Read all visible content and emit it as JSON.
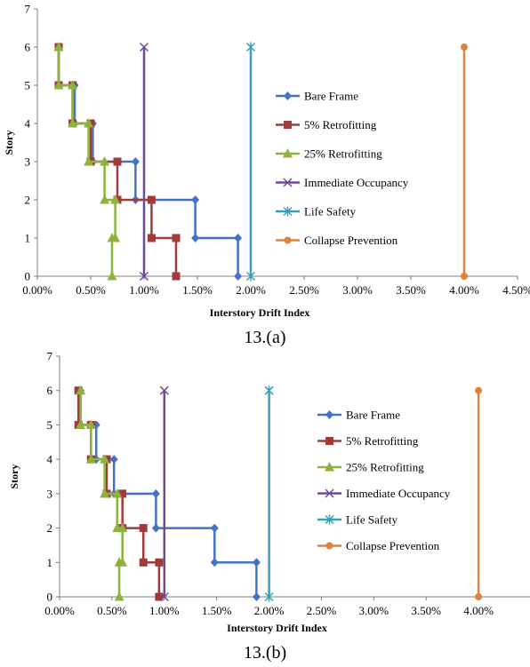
{
  "colors": {
    "Bare Frame": "#4472C4",
    "5% Retrofitting": "#A33A3A",
    "25% Retrofitting": "#8DB33E",
    "Immediate Occupancy": "#6F4A96",
    "Life Safety": "#3A9FB5",
    "Collapse Prevention": "#E0823A"
  },
  "markers": {
    "Bare Frame": "diamond",
    "5% Retrofitting": "square",
    "25% Retrofitting": "triangle",
    "Immediate Occupancy": "x",
    "Life Safety": "star",
    "Collapse Prevention": "circle"
  },
  "chart_data": [
    {
      "caption": "13.(a)",
      "type": "line",
      "xlabel": "Interstory Drift Index",
      "ylabel": "Story",
      "xlim": [
        0,
        4.5
      ],
      "ylim": [
        0,
        7
      ],
      "xticks": [
        "0.00%",
        "0.50%",
        "1.00%",
        "1.50%",
        "2.00%",
        "2.50%",
        "3.00%",
        "3.50%",
        "4.00%",
        "4.50%"
      ],
      "yticks": [
        "0",
        "1",
        "2",
        "3",
        "4",
        "5",
        "6",
        "7"
      ],
      "grid": false,
      "legend_position": "right",
      "series": [
        {
          "name": "Bare Frame",
          "points": [
            [
              1.88,
              0
            ],
            [
              1.88,
              1
            ],
            [
              1.48,
              1
            ],
            [
              1.48,
              2
            ],
            [
              0.92,
              2
            ],
            [
              0.92,
              3
            ],
            [
              0.52,
              3
            ],
            [
              0.52,
              4
            ],
            [
              0.35,
              4
            ],
            [
              0.35,
              5
            ],
            [
              0.2,
              5
            ],
            [
              0.2,
              6
            ]
          ]
        },
        {
          "name": "5% Retrofitting",
          "points": [
            [
              1.3,
              0
            ],
            [
              1.3,
              1
            ],
            [
              1.07,
              1
            ],
            [
              1.07,
              2
            ],
            [
              0.75,
              2
            ],
            [
              0.75,
              3
            ],
            [
              0.5,
              3
            ],
            [
              0.5,
              4
            ],
            [
              0.33,
              4
            ],
            [
              0.33,
              5
            ],
            [
              0.2,
              5
            ],
            [
              0.2,
              6
            ]
          ]
        },
        {
          "name": "25% Retrofitting",
          "points": [
            [
              0.7,
              0
            ],
            [
              0.7,
              1
            ],
            [
              0.73,
              1
            ],
            [
              0.73,
              2
            ],
            [
              0.63,
              2
            ],
            [
              0.63,
              3
            ],
            [
              0.48,
              3
            ],
            [
              0.48,
              4
            ],
            [
              0.33,
              4
            ],
            [
              0.33,
              5
            ],
            [
              0.2,
              5
            ],
            [
              0.2,
              6
            ]
          ]
        },
        {
          "name": "Immediate Occupancy",
          "points": [
            [
              1.0,
              0
            ],
            [
              1.0,
              6
            ]
          ]
        },
        {
          "name": "Life Safety",
          "points": [
            [
              2.0,
              0
            ],
            [
              2.0,
              6
            ]
          ]
        },
        {
          "name": "Collapse Prevention",
          "points": [
            [
              4.0,
              0
            ],
            [
              4.0,
              6
            ]
          ]
        }
      ]
    },
    {
      "caption": "13.(b)",
      "type": "line",
      "xlabel": "Interstory Drift Index",
      "ylabel": "Story",
      "xlim": [
        0,
        4.5
      ],
      "ylim": [
        0,
        7
      ],
      "xticks": [
        "0.00%",
        "0.50%",
        "1.00%",
        "1.50%",
        "2.00%",
        "2.50%",
        "3.00%",
        "3.50%",
        "4.00%"
      ],
      "yticks": [
        "0",
        "1",
        "2",
        "3",
        "4",
        "5",
        "6",
        "7"
      ],
      "grid": false,
      "legend_position": "right",
      "series": [
        {
          "name": "Bare Frame",
          "points": [
            [
              1.88,
              0
            ],
            [
              1.88,
              1
            ],
            [
              1.48,
              1
            ],
            [
              1.48,
              2
            ],
            [
              0.92,
              2
            ],
            [
              0.92,
              3
            ],
            [
              0.52,
              3
            ],
            [
              0.52,
              4
            ],
            [
              0.35,
              4
            ],
            [
              0.35,
              5
            ],
            [
              0.2,
              5
            ],
            [
              0.2,
              6
            ]
          ]
        },
        {
          "name": "5% Retrofitting",
          "points": [
            [
              0.95,
              0
            ],
            [
              0.95,
              1
            ],
            [
              0.8,
              1
            ],
            [
              0.8,
              2
            ],
            [
              0.6,
              2
            ],
            [
              0.6,
              3
            ],
            [
              0.45,
              3
            ],
            [
              0.45,
              4
            ],
            [
              0.3,
              4
            ],
            [
              0.3,
              5
            ],
            [
              0.18,
              5
            ],
            [
              0.18,
              6
            ]
          ]
        },
        {
          "name": "25% Retrofitting",
          "points": [
            [
              0.57,
              0
            ],
            [
              0.57,
              1
            ],
            [
              0.6,
              1
            ],
            [
              0.6,
              2
            ],
            [
              0.55,
              2
            ],
            [
              0.55,
              3
            ],
            [
              0.43,
              3
            ],
            [
              0.43,
              4
            ],
            [
              0.3,
              4
            ],
            [
              0.3,
              5
            ],
            [
              0.2,
              5
            ],
            [
              0.2,
              6
            ]
          ]
        },
        {
          "name": "Immediate Occupancy",
          "points": [
            [
              1.0,
              0
            ],
            [
              1.0,
              6
            ]
          ]
        },
        {
          "name": "Life Safety",
          "points": [
            [
              2.0,
              0
            ],
            [
              2.0,
              6
            ]
          ]
        },
        {
          "name": "Collapse Prevention",
          "points": [
            [
              4.0,
              0
            ],
            [
              4.0,
              6
            ]
          ]
        }
      ]
    }
  ]
}
